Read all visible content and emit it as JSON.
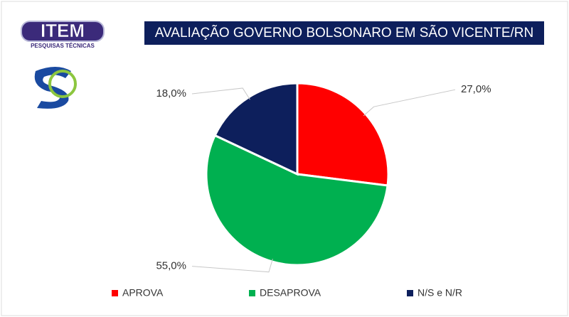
{
  "chart_data": {
    "type": "pie",
    "title": "AVALIAÇÃO GOVERNO BOLSONARO EM SÃO VICENTE/RN",
    "logo": {
      "name": "ITEM",
      "tagline": "PESQUISAS TÉCNICAS"
    },
    "categories": [
      "APROVA",
      "DESAPROVA",
      "N/S e N/R"
    ],
    "values": [
      27.0,
      55.0,
      18.0
    ],
    "value_labels": [
      "27,0%",
      "55,0%",
      "18,0%"
    ],
    "colors": [
      "#ff0000",
      "#00b050",
      "#0d1f5c"
    ],
    "legend": "bottom"
  }
}
